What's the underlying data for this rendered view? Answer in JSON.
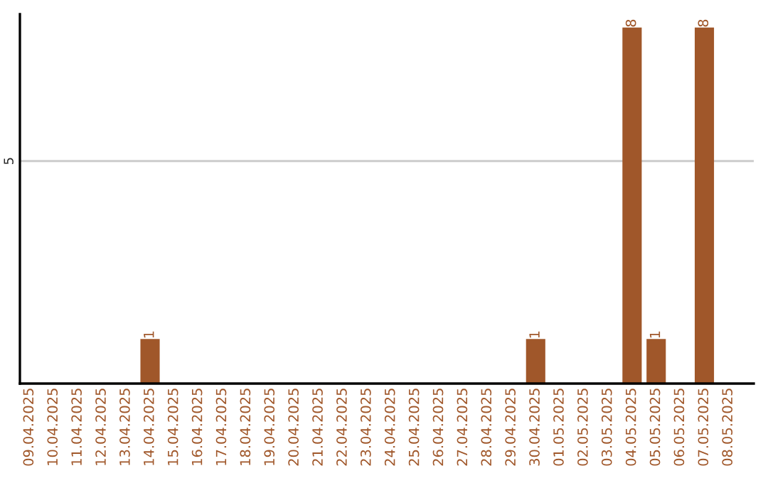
{
  "chart_data": {
    "type": "bar",
    "categories": [
      "09.04.2025",
      "10.04.2025",
      "11.04.2025",
      "12.04.2025",
      "13.04.2025",
      "14.04.2025",
      "15.04.2025",
      "16.04.2025",
      "17.04.2025",
      "18.04.2025",
      "19.04.2025",
      "20.04.2025",
      "21.04.2025",
      "22.04.2025",
      "23.04.2025",
      "24.04.2025",
      "25.04.2025",
      "26.04.2025",
      "27.04.2025",
      "28.04.2025",
      "29.04.2025",
      "30.04.2025",
      "01.05.2025",
      "02.05.2025",
      "03.05.2025",
      "04.05.2025",
      "05.05.2025",
      "06.05.2025",
      "07.05.2025",
      "08.05.2025"
    ],
    "values": [
      0,
      0,
      0,
      0,
      0,
      1,
      0,
      0,
      0,
      0,
      0,
      0,
      0,
      0,
      0,
      0,
      0,
      0,
      0,
      0,
      0,
      1,
      0,
      0,
      0,
      8,
      1,
      0,
      8,
      0
    ],
    "color": "#a0572a",
    "value_labels": [
      null,
      null,
      null,
      null,
      null,
      "1",
      null,
      null,
      null,
      null,
      null,
      null,
      null,
      null,
      null,
      null,
      null,
      null,
      null,
      null,
      null,
      "1",
      null,
      null,
      null,
      "8",
      "1",
      null,
      "8",
      null
    ],
    "ylim": [
      0,
      8.3
    ],
    "yticks": [
      5
    ],
    "grid": "y",
    "legend": false
  }
}
